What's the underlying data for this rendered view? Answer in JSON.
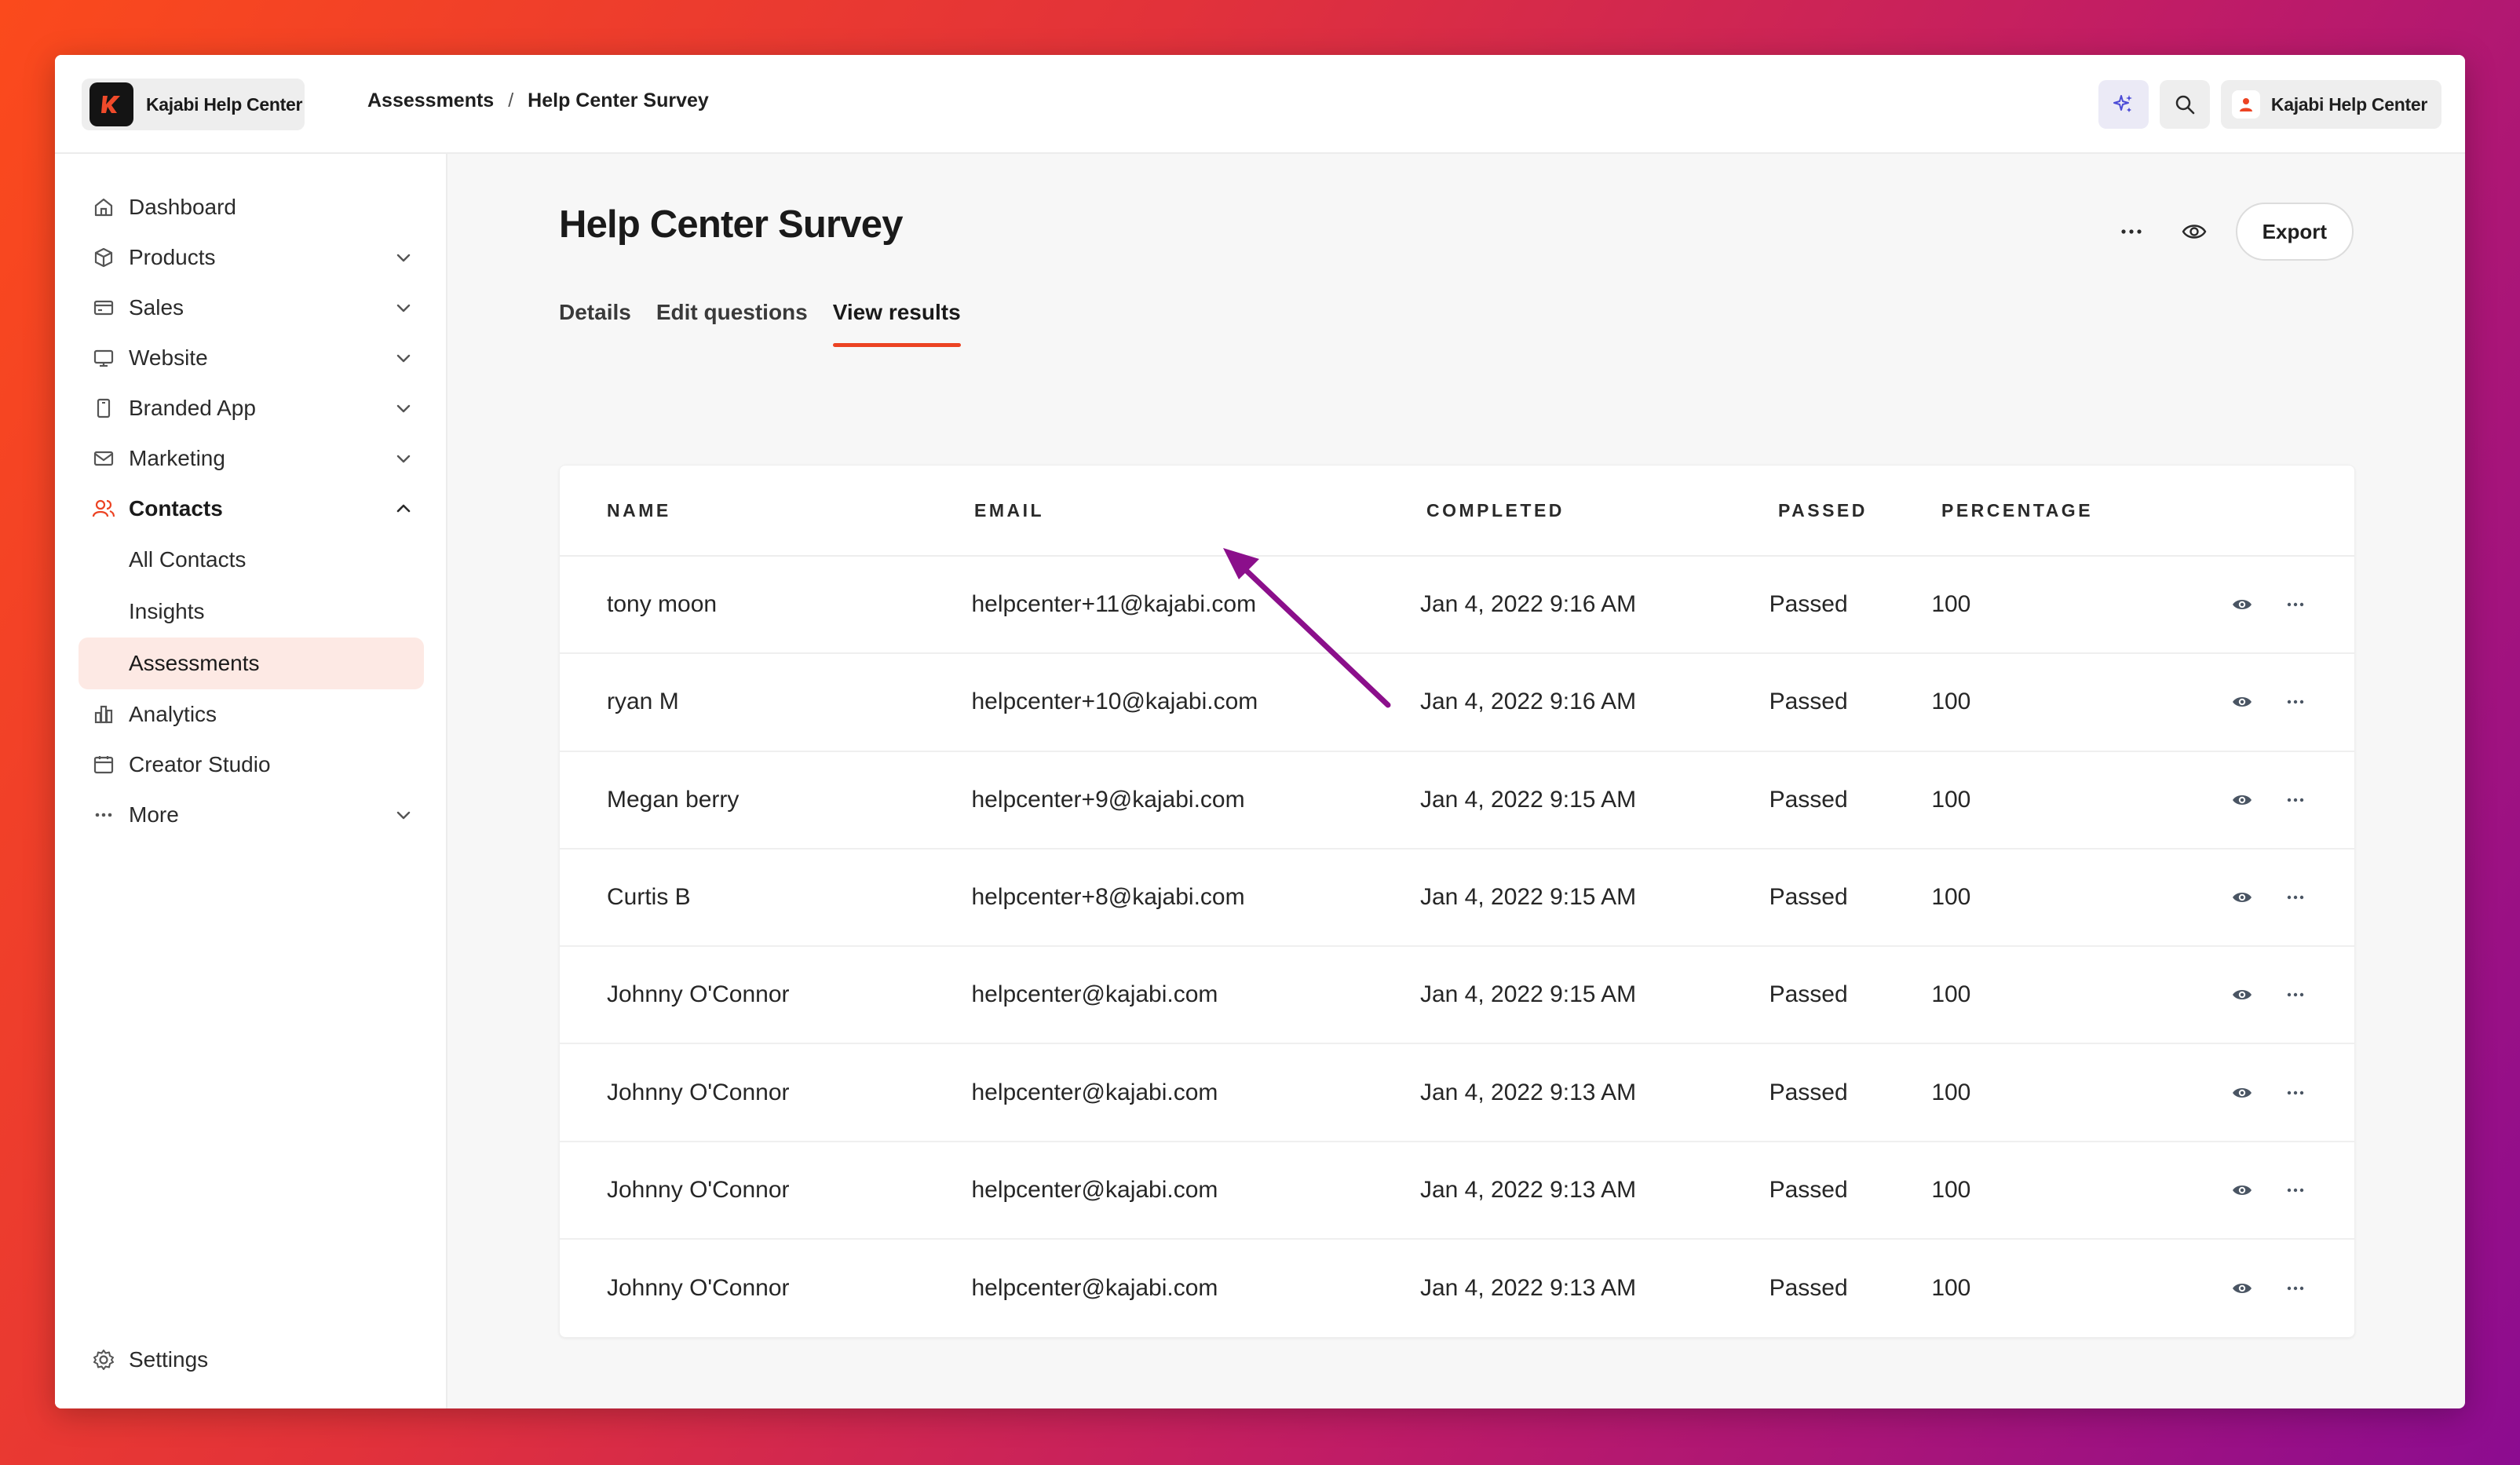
{
  "brand": {
    "name": "Kajabi Help Center",
    "logo_letter": "k"
  },
  "breadcrumb": {
    "parent": "Assessments",
    "separator": "/",
    "current": "Help Center Survey"
  },
  "topbar": {
    "account_name": "Kajabi Help Center"
  },
  "sidebar": {
    "items": [
      {
        "label": "Dashboard",
        "icon": "home-icon"
      },
      {
        "label": "Products",
        "icon": "box-icon"
      },
      {
        "label": "Sales",
        "icon": "credit-card-icon"
      },
      {
        "label": "Website",
        "icon": "monitor-icon"
      },
      {
        "label": "Branded App",
        "icon": "mobile-icon"
      },
      {
        "label": "Marketing",
        "icon": "mail-icon"
      },
      {
        "label": "Contacts",
        "icon": "users-icon"
      }
    ],
    "contacts_sub": [
      "All Contacts",
      "Insights",
      "Assessments"
    ],
    "items_after": [
      {
        "label": "Analytics",
        "icon": "bar-chart-icon"
      },
      {
        "label": "Creator Studio",
        "icon": "calendar-icon"
      },
      {
        "label": "More",
        "icon": "ellipsis-icon"
      }
    ],
    "settings_label": "Settings"
  },
  "page": {
    "title": "Help Center Survey",
    "export_label": "Export",
    "tabs": [
      "Details",
      "Edit questions",
      "View results"
    ],
    "active_tab": "View results"
  },
  "table": {
    "headers": [
      "NAME",
      "EMAIL",
      "COMPLETED",
      "PASSED",
      "PERCENTAGE"
    ],
    "rows": [
      {
        "name": "tony moon",
        "email": "helpcenter+11@kajabi.com",
        "completed": "Jan 4, 2022 9:16 AM",
        "passed": "Passed",
        "percentage": "100"
      },
      {
        "name": "ryan M",
        "email": "helpcenter+10@kajabi.com",
        "completed": "Jan 4, 2022 9:16 AM",
        "passed": "Passed",
        "percentage": "100"
      },
      {
        "name": "Megan berry",
        "email": "helpcenter+9@kajabi.com",
        "completed": "Jan 4, 2022 9:15 AM",
        "passed": "Passed",
        "percentage": "100"
      },
      {
        "name": "Curtis B",
        "email": "helpcenter+8@kajabi.com",
        "completed": "Jan 4, 2022 9:15 AM",
        "passed": "Passed",
        "percentage": "100"
      },
      {
        "name": "Johnny O'Connor",
        "email": "helpcenter@kajabi.com",
        "completed": "Jan 4, 2022 9:15 AM",
        "passed": "Passed",
        "percentage": "100"
      },
      {
        "name": "Johnny O'Connor",
        "email": "helpcenter@kajabi.com",
        "completed": "Jan 4, 2022 9:13 AM",
        "passed": "Passed",
        "percentage": "100"
      },
      {
        "name": "Johnny O'Connor",
        "email": "helpcenter@kajabi.com",
        "completed": "Jan 4, 2022 9:13 AM",
        "passed": "Passed",
        "percentage": "100"
      },
      {
        "name": "Johnny O'Connor",
        "email": "helpcenter@kajabi.com",
        "completed": "Jan 4, 2022 9:13 AM",
        "passed": "Passed",
        "percentage": "100"
      }
    ]
  },
  "colors": {
    "accent": "#ec4323",
    "selected_bg": "#fde9e4",
    "annotation_arrow": "#8b0f8b"
  }
}
